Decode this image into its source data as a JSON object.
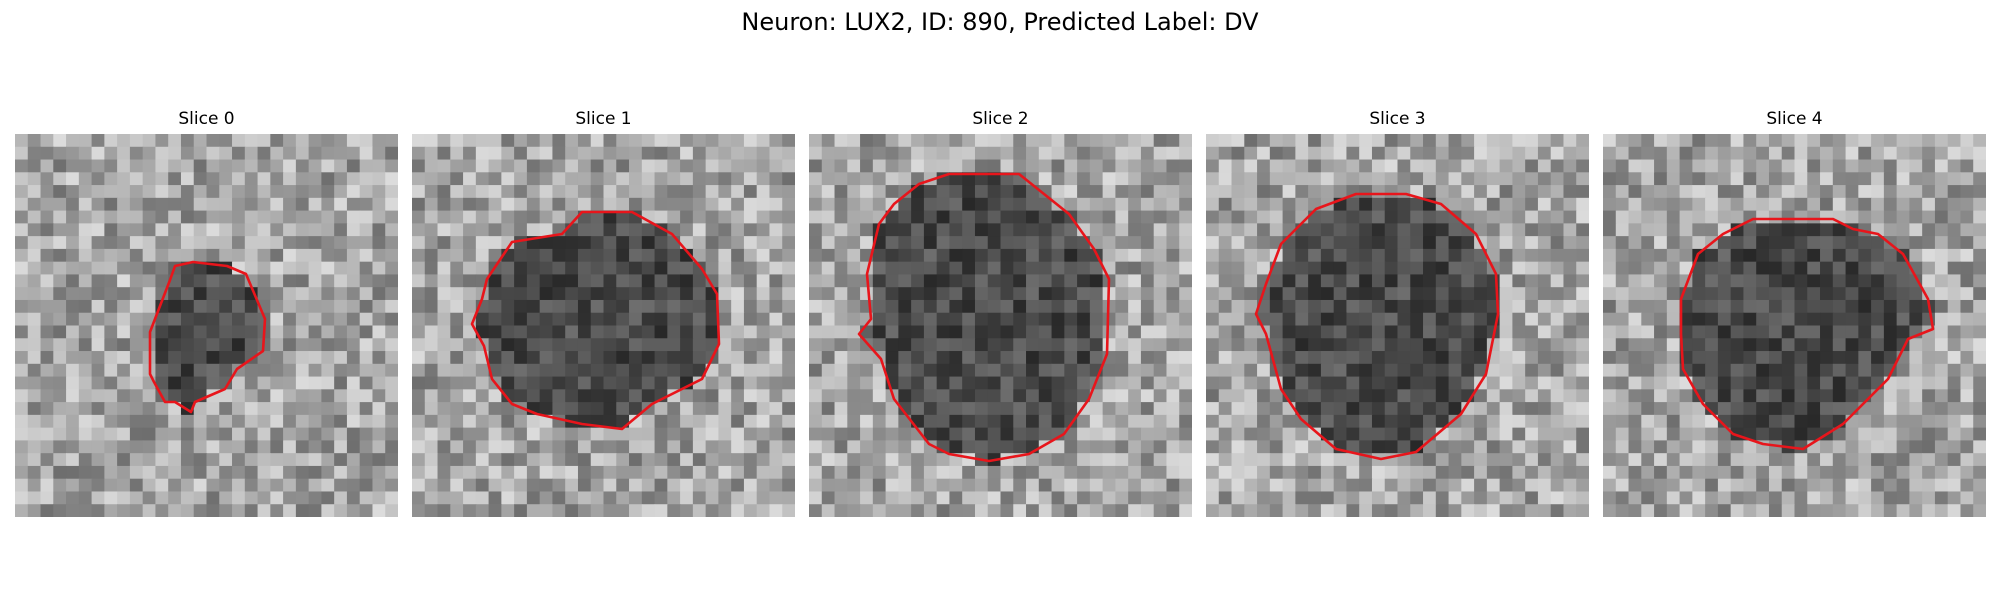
{
  "figure": {
    "title": "Neuron: LUX2, ID: 890, Predicted Label: DV"
  },
  "colors": {
    "contour": "#e8151b",
    "background": "#ffffff"
  },
  "panels": [
    {
      "title": "Slice 0"
    },
    {
      "title": "Slice 1"
    },
    {
      "title": "Slice 2"
    },
    {
      "title": "Slice 3"
    },
    {
      "title": "Slice 4"
    }
  ]
}
